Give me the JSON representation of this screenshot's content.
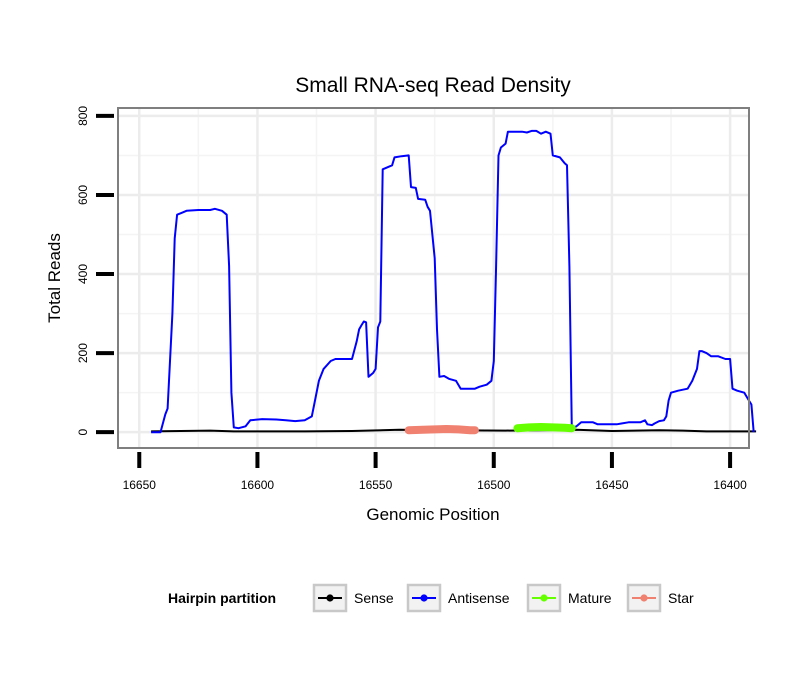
{
  "chart_data": {
    "type": "line",
    "title": "Small RNA-seq Read Density",
    "xlabel": "Genomic Position",
    "ylabel": "Total Reads",
    "xlim": [
      16392,
      16659
    ],
    "ylim": [
      -40,
      820
    ],
    "x_reversed": true,
    "x_ticks": [
      16650,
      16600,
      16550,
      16500,
      16450,
      16400
    ],
    "y_ticks": [
      0,
      200,
      400,
      600,
      800
    ],
    "grid": true,
    "legend": {
      "title": "Hairpin partition",
      "position": "bottom",
      "entries": [
        "Sense",
        "Antisense",
        "Mature",
        "Star"
      ]
    },
    "series": [
      {
        "name": "Sense",
        "color": "#000000",
        "points": [
          [
            16645,
            2
          ],
          [
            16620,
            4
          ],
          [
            16610,
            2
          ],
          [
            16580,
            2
          ],
          [
            16560,
            3
          ],
          [
            16540,
            6
          ],
          [
            16520,
            5
          ],
          [
            16495,
            4
          ],
          [
            16480,
            5
          ],
          [
            16465,
            6
          ],
          [
            16450,
            3
          ],
          [
            16430,
            5
          ],
          [
            16420,
            4
          ],
          [
            16410,
            2
          ],
          [
            16389,
            2
          ]
        ]
      },
      {
        "name": "Antisense",
        "color": "#0000ff",
        "points": [
          [
            16645,
            0
          ],
          [
            16641,
            0
          ],
          [
            16639,
            45
          ],
          [
            16638,
            60
          ],
          [
            16636,
            300
          ],
          [
            16635,
            490
          ],
          [
            16634,
            550
          ],
          [
            16632,
            555
          ],
          [
            16630,
            560
          ],
          [
            16625,
            562
          ],
          [
            16620,
            562
          ],
          [
            16618,
            565
          ],
          [
            16615,
            560
          ],
          [
            16613,
            550
          ],
          [
            16612,
            420
          ],
          [
            16611,
            100
          ],
          [
            16610,
            12
          ],
          [
            16608,
            10
          ],
          [
            16605,
            15
          ],
          [
            16603,
            30
          ],
          [
            16598,
            33
          ],
          [
            16592,
            32
          ],
          [
            16588,
            30
          ],
          [
            16584,
            28
          ],
          [
            16580,
            30
          ],
          [
            16577,
            40
          ],
          [
            16576,
            70
          ],
          [
            16574,
            130
          ],
          [
            16572,
            160
          ],
          [
            16569,
            180
          ],
          [
            16567,
            185
          ],
          [
            16560,
            185
          ],
          [
            16558,
            230
          ],
          [
            16557,
            260
          ],
          [
            16556,
            270
          ],
          [
            16555,
            280
          ],
          [
            16554,
            278
          ],
          [
            16553,
            140
          ],
          [
            16551,
            150
          ],
          [
            16550,
            160
          ],
          [
            16549,
            265
          ],
          [
            16548,
            280
          ],
          [
            16547,
            665
          ],
          [
            16545,
            670
          ],
          [
            16543,
            675
          ],
          [
            16542,
            695
          ],
          [
            16539,
            698
          ],
          [
            16536,
            700
          ],
          [
            16535,
            620
          ],
          [
            16533,
            618
          ],
          [
            16532,
            590
          ],
          [
            16529,
            588
          ],
          [
            16528,
            570
          ],
          [
            16527,
            560
          ],
          [
            16525,
            440
          ],
          [
            16524,
            260
          ],
          [
            16523,
            140
          ],
          [
            16521,
            142
          ],
          [
            16519,
            135
          ],
          [
            16516,
            130
          ],
          [
            16514,
            110
          ],
          [
            16508,
            110
          ],
          [
            16506,
            115
          ],
          [
            16503,
            120
          ],
          [
            16501,
            130
          ],
          [
            16500,
            180
          ],
          [
            16499,
            420
          ],
          [
            16498,
            700
          ],
          [
            16497,
            720
          ],
          [
            16495,
            730
          ],
          [
            16494,
            760
          ],
          [
            16488,
            760
          ],
          [
            16486,
            758
          ],
          [
            16484,
            762
          ],
          [
            16482,
            762
          ],
          [
            16480,
            755
          ],
          [
            16478,
            760
          ],
          [
            16476,
            755
          ],
          [
            16475,
            700
          ],
          [
            16472,
            695
          ],
          [
            16470,
            680
          ],
          [
            16469,
            675
          ],
          [
            16468,
            420
          ],
          [
            16467,
            10
          ],
          [
            16465,
            15
          ],
          [
            16463,
            25
          ],
          [
            16458,
            25
          ],
          [
            16456,
            20
          ],
          [
            16448,
            20
          ],
          [
            16446,
            22
          ],
          [
            16443,
            25
          ],
          [
            16438,
            25
          ],
          [
            16436,
            30
          ],
          [
            16435,
            20
          ],
          [
            16433,
            18
          ],
          [
            16432,
            22
          ],
          [
            16430,
            28
          ],
          [
            16428,
            30
          ],
          [
            16427,
            40
          ],
          [
            16426,
            80
          ],
          [
            16425,
            100
          ],
          [
            16422,
            105
          ],
          [
            16418,
            110
          ],
          [
            16416,
            130
          ],
          [
            16414,
            160
          ],
          [
            16413,
            205
          ],
          [
            16412,
            205
          ],
          [
            16410,
            200
          ],
          [
            16408,
            192
          ],
          [
            16405,
            192
          ],
          [
            16402,
            185
          ],
          [
            16400,
            185
          ],
          [
            16399,
            110
          ],
          [
            16397,
            105
          ],
          [
            16394,
            100
          ],
          [
            16393,
            90
          ],
          [
            16392,
            80
          ],
          [
            16391,
            70
          ],
          [
            16390,
            0
          ]
        ]
      },
      {
        "name": "Mature",
        "color": "#66ff00",
        "points": [
          [
            16490,
            10
          ],
          [
            16485,
            12
          ],
          [
            16480,
            13
          ],
          [
            16475,
            12
          ],
          [
            16470,
            11
          ],
          [
            16467,
            10
          ]
        ]
      },
      {
        "name": "Star",
        "color": "#f08070",
        "points": [
          [
            16536,
            5
          ],
          [
            16530,
            6
          ],
          [
            16525,
            7
          ],
          [
            16520,
            8
          ],
          [
            16515,
            7
          ],
          [
            16510,
            5
          ],
          [
            16508,
            5
          ]
        ]
      }
    ]
  }
}
